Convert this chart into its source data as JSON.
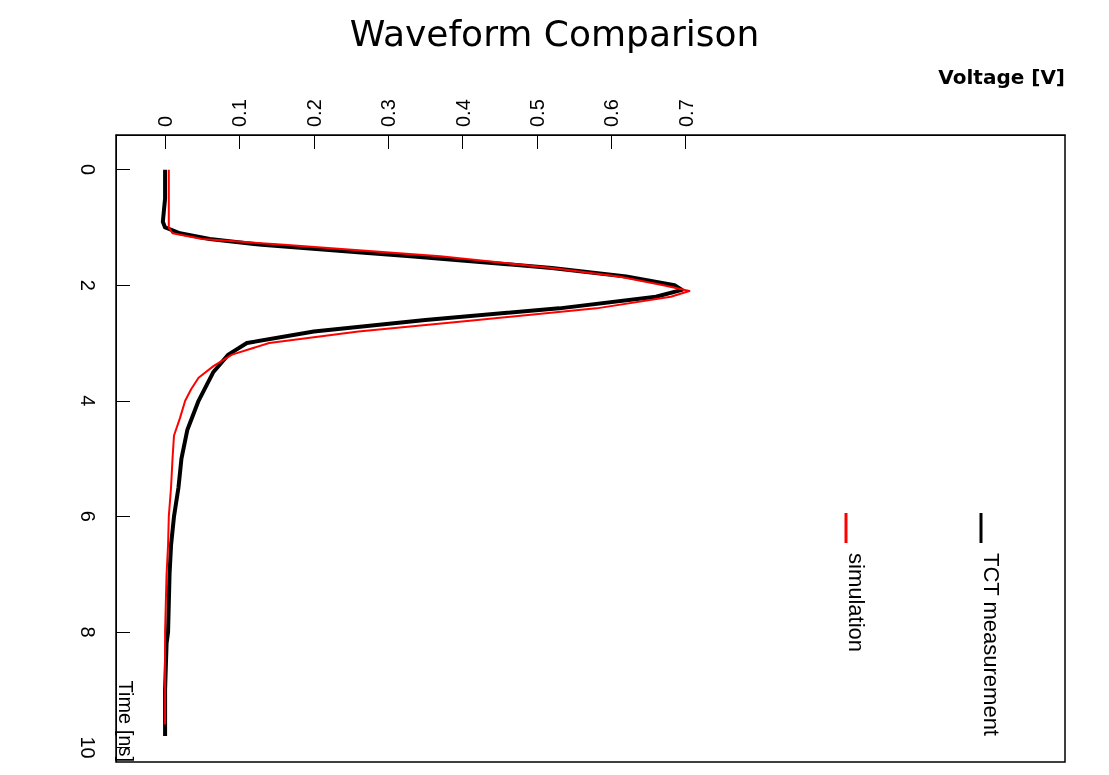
{
  "chart_data": {
    "type": "line",
    "title": "Waveform Comparison",
    "xlabel": "Voltage [V]",
    "ylabel": "Time [ns]",
    "xlim": [
      -0.066,
      1.21
    ],
    "xticks": [
      0,
      0.1,
      0.2,
      0.3,
      0.4,
      0.5,
      0.6,
      0.7
    ],
    "ylim": [
      10.25,
      -0.6
    ],
    "yticks": [
      0,
      2,
      4,
      6,
      8,
      10
    ],
    "grid": false,
    "legend": "right",
    "marker": "none",
    "line_style": "solid",
    "series": [
      {
        "name": "TCT measurement",
        "color": "#000000",
        "values": [
          0,
          0.5,
          0.9,
          1.0,
          1.1,
          1.2,
          1.3,
          1.5,
          1.7,
          1.85,
          2.0,
          2.08,
          2.2,
          2.4,
          2.6,
          2.8,
          3.0,
          3.2,
          3.5,
          4.0,
          4.5,
          5.0,
          5.5,
          6.0,
          6.5,
          7.0,
          7.5,
          8.0,
          8.2,
          9.0,
          9.8
        ],
        "x": [
          0.0,
          0.0,
          -0.003,
          0.0,
          0.02,
          0.06,
          0.13,
          0.33,
          0.52,
          0.62,
          0.685,
          0.695,
          0.66,
          0.53,
          0.35,
          0.2,
          0.11,
          0.085,
          0.065,
          0.045,
          0.03,
          0.022,
          0.018,
          0.012,
          0.008,
          0.006,
          0.005,
          0.004,
          0.002,
          0.0,
          0.0
        ]
      },
      {
        "name": "simulation",
        "color": "#ff0000",
        "values": [
          0,
          0.5,
          1.0,
          1.1,
          1.2,
          1.3,
          1.5,
          1.7,
          1.85,
          2.0,
          2.1,
          2.2,
          2.4,
          2.6,
          2.8,
          3.0,
          3.2,
          3.4,
          3.6,
          3.8,
          4.0,
          4.3,
          4.6,
          5.0,
          5.5,
          6.0,
          6.5,
          7.0,
          7.5,
          8.0,
          8.5,
          9.0,
          9.6
        ],
        "x": [
          0.005,
          0.005,
          0.005,
          0.01,
          0.05,
          0.16,
          0.37,
          0.52,
          0.61,
          0.67,
          0.705,
          0.68,
          0.58,
          0.42,
          0.26,
          0.14,
          0.09,
          0.065,
          0.045,
          0.035,
          0.027,
          0.02,
          0.012,
          0.01,
          0.008,
          0.005,
          0.004,
          0.002,
          0.001,
          0.0,
          0.0,
          0.0,
          0.0
        ]
      }
    ]
  }
}
